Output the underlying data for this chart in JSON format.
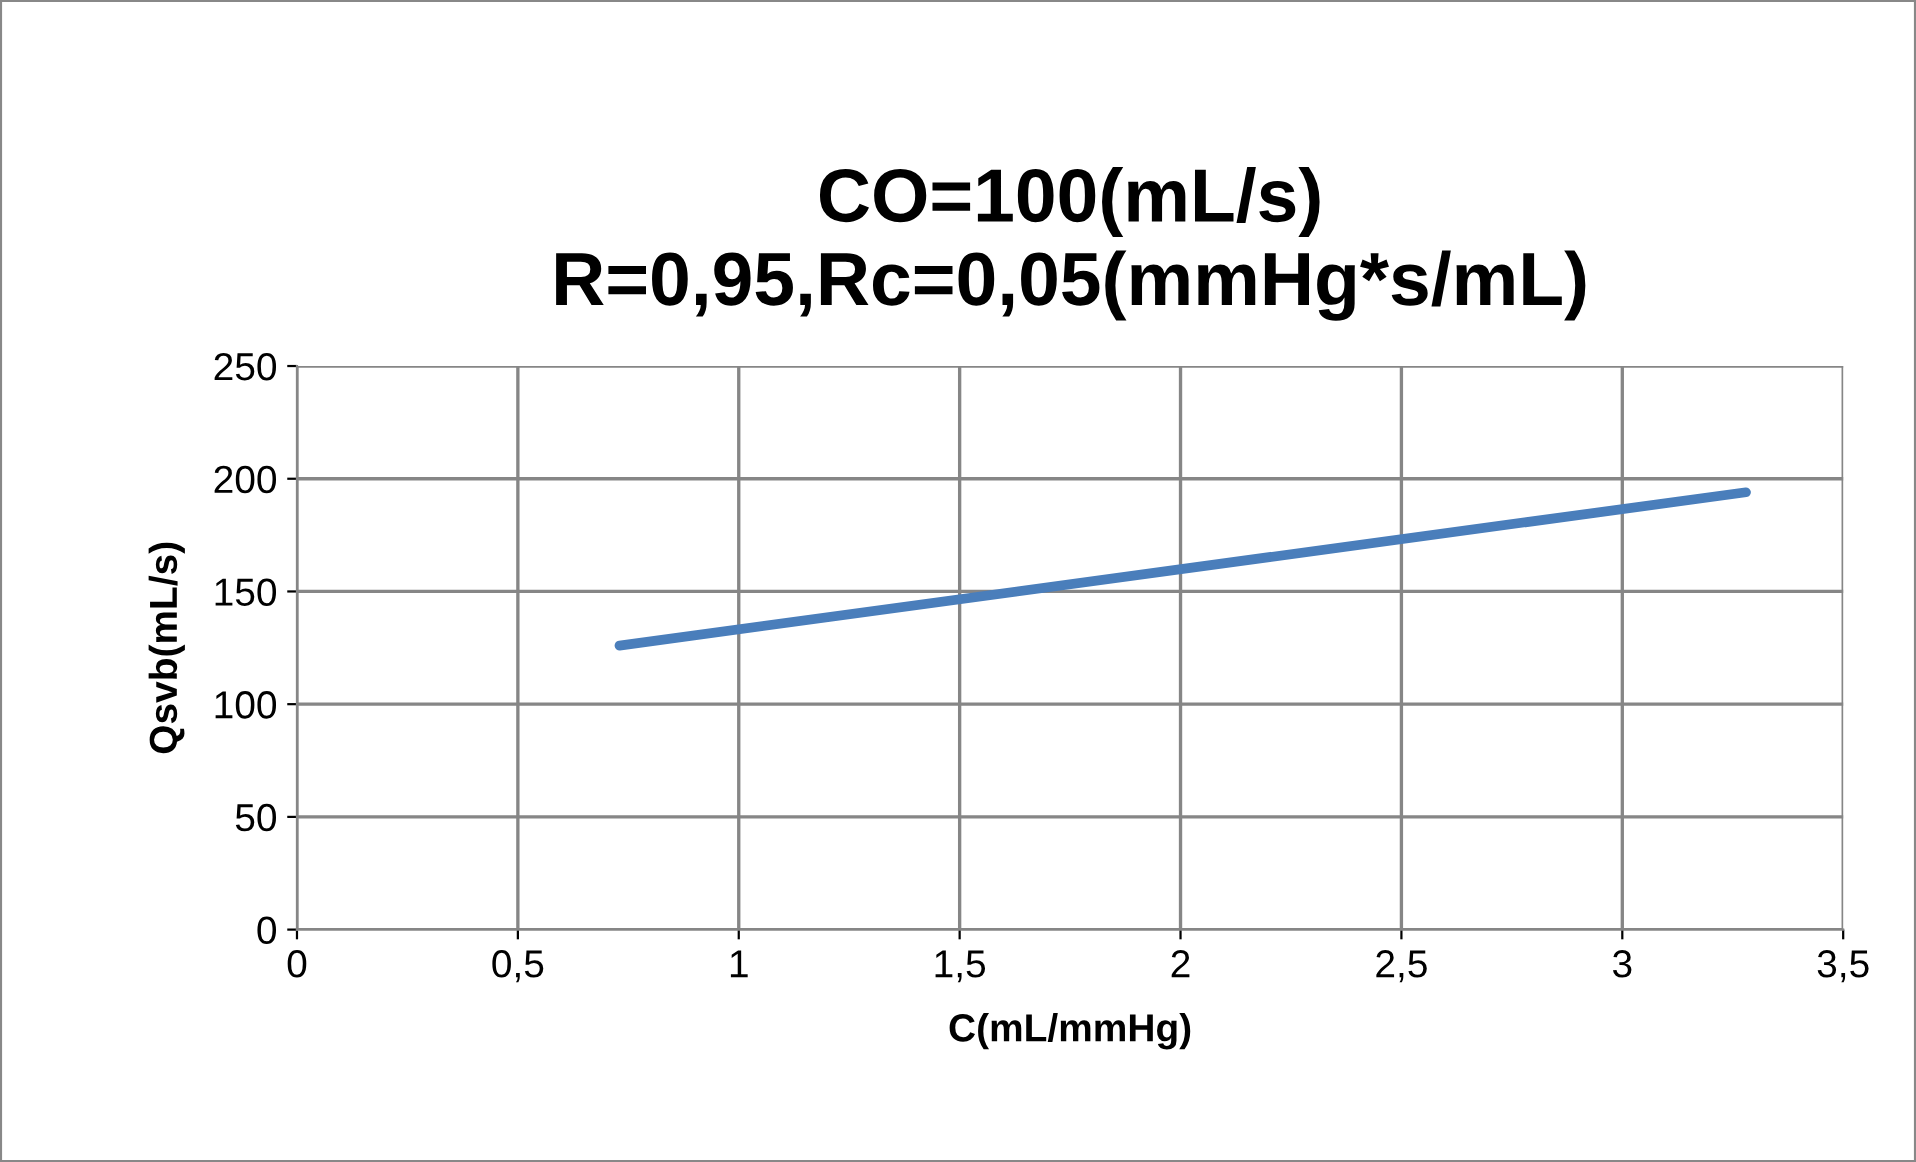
{
  "chart_data": {
    "type": "line",
    "title": "CO=100(mL/s)\nR=0,95,Rc=0,05(mmHg*s/mL)",
    "xlabel": "C(mL/mmHg)",
    "ylabel": "Qsvb(mL/s)",
    "series": [
      {
        "color": "#4a7ebb",
        "x": [
          0.73,
          3.28
        ],
        "values": [
          126,
          194
        ]
      }
    ],
    "xlim": [
      0,
      3.5
    ],
    "xticks": [
      0,
      {
        "value": 0.5,
        "label": "0,5"
      },
      1,
      {
        "value": 1.5,
        "label": "1,5"
      },
      2,
      {
        "value": 2.5,
        "label": "2,5"
      },
      3,
      {
        "value": 3.5,
        "label": "3,5"
      }
    ],
    "ylim": [
      0,
      250
    ],
    "yticks": [
      0,
      50,
      100,
      150,
      200,
      250
    ],
    "grid": true,
    "marker": "none",
    "line_style": "solid"
  }
}
